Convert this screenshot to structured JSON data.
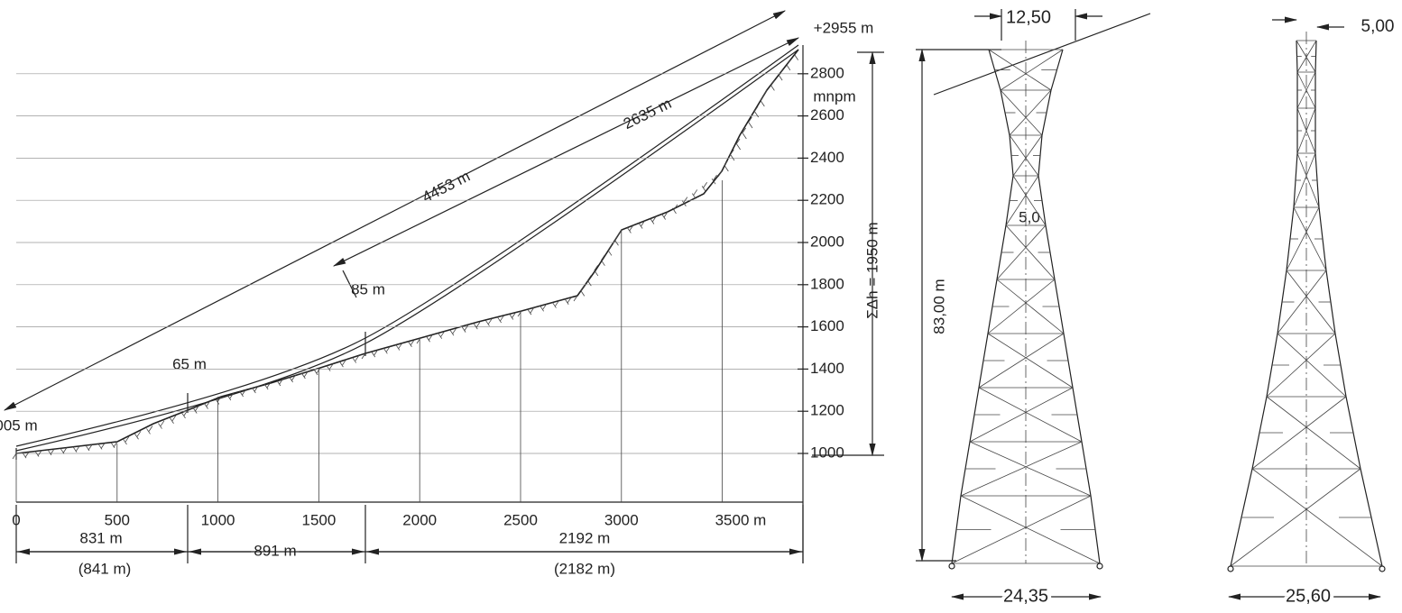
{
  "profile": {
    "top_elevation": "+2955 m",
    "elevation_unit": "mnpm",
    "elevation_labels": [
      "1000",
      "1200",
      "1400",
      "1600",
      "1800",
      "2000",
      "2200",
      "2400",
      "2600",
      "2800"
    ],
    "height_difference": "ΣΔh = 1950 m",
    "distance_labels": [
      "0",
      "500",
      "1000",
      "1500",
      "2000",
      "2500",
      "3000",
      "3500 m"
    ],
    "total_length": "4453 m",
    "upper_span": "2635 m",
    "tower_heights": [
      "005 m",
      "65 m",
      "85 m"
    ],
    "sections": [
      {
        "length": "831 m",
        "slope_length": "(841 m)"
      },
      {
        "length": "891 m"
      },
      {
        "length": "2192 m",
        "slope_length": "(2182 m)"
      }
    ]
  },
  "tower_front": {
    "top_width": "12,50",
    "waist_width": "5,0",
    "height": "83,00 m",
    "base_width": "24,35"
  },
  "tower_side": {
    "top_width": "5,00",
    "base_width": "25,60"
  }
}
